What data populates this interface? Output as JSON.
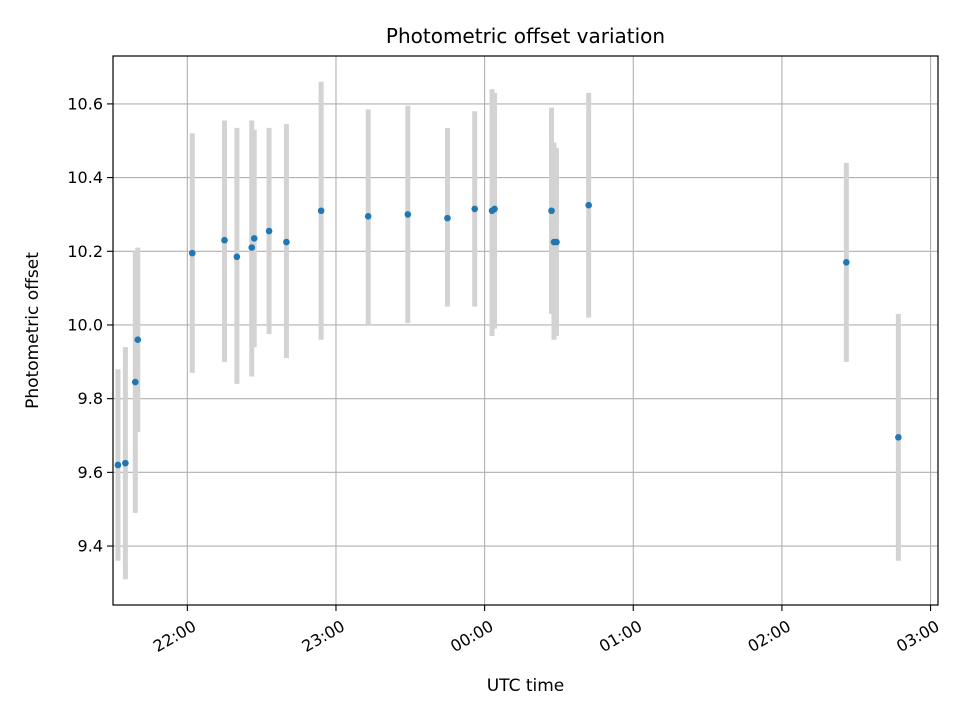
{
  "chart_data": {
    "type": "scatter",
    "title": "Photometric offset variation",
    "xlabel": "UTC time",
    "ylabel": "Photometric offset",
    "x_ticks": [
      "22:00",
      "23:00",
      "00:00",
      "01:00",
      "02:00",
      "03:00"
    ],
    "y_ticks": [
      "9.4",
      "9.6",
      "9.8",
      "10.0",
      "10.2",
      "10.4",
      "10.6"
    ],
    "xlim": [
      "21:30",
      "03:03"
    ],
    "ylim": [
      9.24,
      10.73
    ],
    "grid": true,
    "colors": {
      "point": "#1f77b4",
      "errorbar": "#d3d3d3",
      "grid": "#b0b0b0"
    },
    "points": [
      {
        "x": "21:32",
        "y": 9.62,
        "ylow": 9.36,
        "yhigh": 9.88
      },
      {
        "x": "21:35",
        "y": 9.625,
        "ylow": 9.31,
        "yhigh": 9.94
      },
      {
        "x": "21:39",
        "y": 9.845,
        "ylow": 9.49,
        "yhigh": 10.2
      },
      {
        "x": "21:40",
        "y": 9.96,
        "ylow": 9.71,
        "yhigh": 10.21
      },
      {
        "x": "22:02",
        "y": 10.195,
        "ylow": 9.87,
        "yhigh": 10.52
      },
      {
        "x": "22:15",
        "y": 10.23,
        "ylow": 9.9,
        "yhigh": 10.555
      },
      {
        "x": "22:20",
        "y": 10.185,
        "ylow": 9.84,
        "yhigh": 10.535
      },
      {
        "x": "22:26",
        "y": 10.21,
        "ylow": 9.86,
        "yhigh": 10.555
      },
      {
        "x": "22:27",
        "y": 10.235,
        "ylow": 9.94,
        "yhigh": 10.53
      },
      {
        "x": "22:33",
        "y": 10.255,
        "ylow": 9.975,
        "yhigh": 10.535
      },
      {
        "x": "22:40",
        "y": 10.225,
        "ylow": 9.91,
        "yhigh": 10.545
      },
      {
        "x": "22:54",
        "y": 10.31,
        "ylow": 9.96,
        "yhigh": 10.66
      },
      {
        "x": "23:13",
        "y": 10.295,
        "ylow": 10.0,
        "yhigh": 10.585
      },
      {
        "x": "23:29",
        "y": 10.3,
        "ylow": 10.005,
        "yhigh": 10.595
      },
      {
        "x": "23:45",
        "y": 10.29,
        "ylow": 10.05,
        "yhigh": 10.535
      },
      {
        "x": "23:56",
        "y": 10.315,
        "ylow": 10.05,
        "yhigh": 10.58
      },
      {
        "x": "00:03",
        "y": 10.31,
        "ylow": 9.97,
        "yhigh": 10.64
      },
      {
        "x": "00:04",
        "y": 10.315,
        "ylow": 9.99,
        "yhigh": 10.63
      },
      {
        "x": "00:27",
        "y": 10.31,
        "ylow": 10.03,
        "yhigh": 10.59
      },
      {
        "x": "00:28",
        "y": 10.225,
        "ylow": 9.96,
        "yhigh": 10.495
      },
      {
        "x": "00:29",
        "y": 10.225,
        "ylow": 9.97,
        "yhigh": 10.48
      },
      {
        "x": "00:42",
        "y": 10.325,
        "ylow": 10.02,
        "yhigh": 10.63
      },
      {
        "x": "02:26",
        "y": 10.17,
        "ylow": 9.9,
        "yhigh": 10.44
      },
      {
        "x": "02:47",
        "y": 9.695,
        "ylow": 9.36,
        "yhigh": 10.03
      }
    ],
    "x_day_rollover_after": "12:00"
  }
}
